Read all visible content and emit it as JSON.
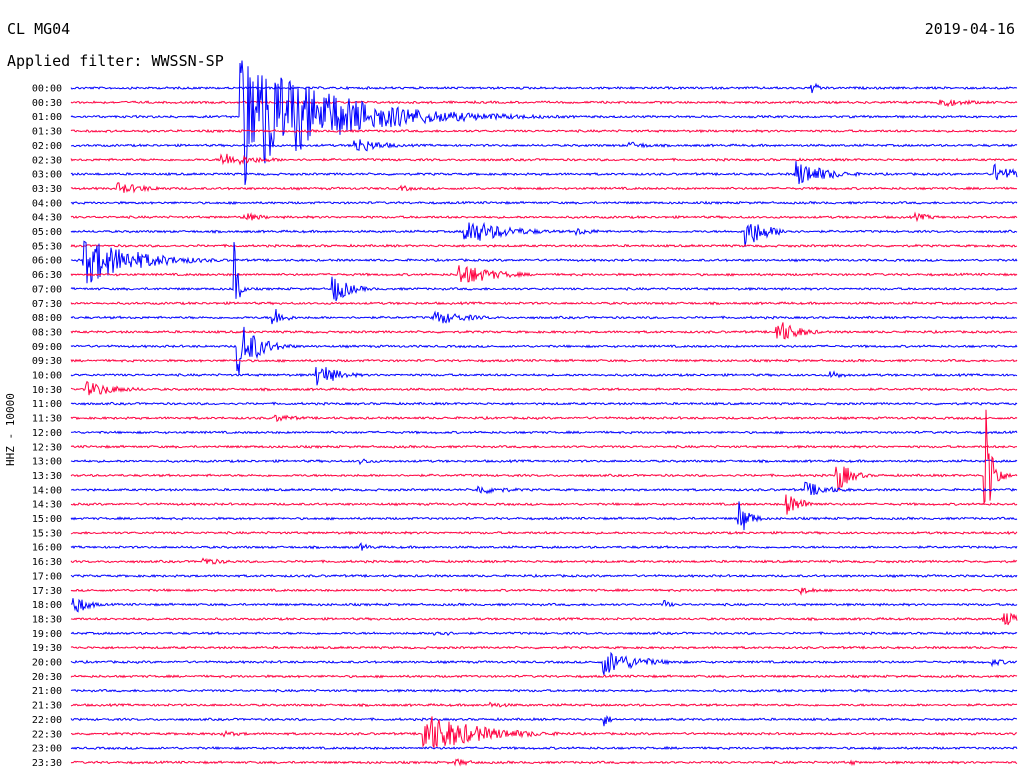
{
  "header": {
    "station": "CL MG04",
    "filter": "Applied filter: WWSSN-SP",
    "date": "2019-04-16"
  },
  "colors": {
    "odd": "#0000ff",
    "even": "#ff0040",
    "text": "#000000"
  },
  "chart_data": {
    "type": "line",
    "title": "CL MG04",
    "subtitle": "Applied filter: WWSSN-SP",
    "ylabel": "HHZ - 10000",
    "grid": false,
    "legend": "none",
    "rows": [
      "00:00",
      "00:30",
      "01:00",
      "01:30",
      "02:00",
      "02:30",
      "03:00",
      "03:30",
      "04:00",
      "04:30",
      "05:00",
      "05:30",
      "06:00",
      "06:30",
      "07:00",
      "07:30",
      "08:00",
      "08:30",
      "09:00",
      "09:30",
      "10:00",
      "10:30",
      "11:00",
      "11:30",
      "12:00",
      "12:30",
      "13:00",
      "13:30",
      "14:00",
      "14:30",
      "15:00",
      "15:30",
      "16:00",
      "16:30",
      "17:00",
      "17:30",
      "18:00",
      "18:30",
      "19:00",
      "19:30",
      "20:00",
      "20:30",
      "21:00",
      "21:30",
      "22:00",
      "22:30",
      "23:00",
      "23:30"
    ],
    "row_minutes": 30,
    "events": [
      {
        "row": 0,
        "minute": 23.5,
        "amp": 6,
        "dur": 0.3
      },
      {
        "row": 1,
        "minute": 27.5,
        "amp": 5,
        "dur": 1.0
      },
      {
        "row": 2,
        "minute": 5.4,
        "amp": 72,
        "dur": 2.5
      },
      {
        "row": 2,
        "minute": 6.8,
        "amp": 12,
        "dur": 1.2
      },
      {
        "row": 4,
        "minute": 9.0,
        "amp": 9,
        "dur": 0.8
      },
      {
        "row": 4,
        "minute": 17.7,
        "amp": 4,
        "dur": 0.7
      },
      {
        "row": 5,
        "minute": 4.8,
        "amp": 8,
        "dur": 1.0
      },
      {
        "row": 6,
        "minute": 23.0,
        "amp": 14,
        "dur": 0.9
      },
      {
        "row": 6,
        "minute": 29.3,
        "amp": 10,
        "dur": 0.7
      },
      {
        "row": 7,
        "minute": 1.5,
        "amp": 6,
        "dur": 1.0
      },
      {
        "row": 7,
        "minute": 10.5,
        "amp": 3,
        "dur": 0.6
      },
      {
        "row": 9,
        "minute": 5.5,
        "amp": 5,
        "dur": 0.6
      },
      {
        "row": 9,
        "minute": 26.8,
        "amp": 4,
        "dur": 0.6
      },
      {
        "row": 10,
        "minute": 12.5,
        "amp": 14,
        "dur": 1.2
      },
      {
        "row": 10,
        "minute": 16.0,
        "amp": 4,
        "dur": 0.8
      },
      {
        "row": 10,
        "minute": 21.4,
        "amp": 18,
        "dur": 0.6
      },
      {
        "row": 12,
        "minute": 0.4,
        "amp": 26,
        "dur": 1.5
      },
      {
        "row": 13,
        "minute": 12.3,
        "amp": 13,
        "dur": 1.0
      },
      {
        "row": 14,
        "minute": 8.3,
        "amp": 16,
        "dur": 0.5
      },
      {
        "row": 14,
        "minute": 5.2,
        "amp": 70,
        "dur": 0.1
      },
      {
        "row": 16,
        "minute": 6.4,
        "amp": 14,
        "dur": 0.3
      },
      {
        "row": 16,
        "minute": 11.5,
        "amp": 8,
        "dur": 1.0
      },
      {
        "row": 17,
        "minute": 22.4,
        "amp": 14,
        "dur": 0.6
      },
      {
        "row": 18,
        "minute": 5.3,
        "amp": 30,
        "dur": 0.6
      },
      {
        "row": 20,
        "minute": 7.8,
        "amp": 14,
        "dur": 0.6
      },
      {
        "row": 20,
        "minute": 24.1,
        "amp": 5,
        "dur": 0.4
      },
      {
        "row": 21,
        "minute": 0.5,
        "amp": 8,
        "dur": 1.0
      },
      {
        "row": 23,
        "minute": 6.5,
        "amp": 4,
        "dur": 0.8
      },
      {
        "row": 26,
        "minute": 9.2,
        "amp": 3,
        "dur": 0.6
      },
      {
        "row": 27,
        "minute": 24.3,
        "amp": 18,
        "dur": 0.4
      },
      {
        "row": 27,
        "minute": 29.0,
        "amp": 80,
        "dur": 0.2
      },
      {
        "row": 28,
        "minute": 12.9,
        "amp": 5,
        "dur": 1.0
      },
      {
        "row": 28,
        "minute": 23.3,
        "amp": 8,
        "dur": 0.8
      },
      {
        "row": 29,
        "minute": 22.7,
        "amp": 12,
        "dur": 0.5
      },
      {
        "row": 30,
        "minute": 21.2,
        "amp": 20,
        "dur": 0.3
      },
      {
        "row": 32,
        "minute": 9.2,
        "amp": 4,
        "dur": 0.4
      },
      {
        "row": 33,
        "minute": 4.2,
        "amp": 4,
        "dur": 0.8
      },
      {
        "row": 35,
        "minute": 23.2,
        "amp": 4,
        "dur": 0.5
      },
      {
        "row": 36,
        "minute": 0.1,
        "amp": 12,
        "dur": 0.4
      },
      {
        "row": 36,
        "minute": 18.8,
        "amp": 6,
        "dur": 0.2
      },
      {
        "row": 37,
        "minute": 29.6,
        "amp": 8,
        "dur": 0.6
      },
      {
        "row": 38,
        "minute": 11.5,
        "amp": 4,
        "dur": 0.6
      },
      {
        "row": 40,
        "minute": 16.9,
        "amp": 14,
        "dur": 1.0
      },
      {
        "row": 40,
        "minute": 29.2,
        "amp": 4,
        "dur": 0.6
      },
      {
        "row": 43,
        "minute": 13.3,
        "amp": 3,
        "dur": 0.8
      },
      {
        "row": 44,
        "minute": 16.9,
        "amp": 8,
        "dur": 0.2
      },
      {
        "row": 45,
        "minute": 11.2,
        "amp": 22,
        "dur": 1.6
      },
      {
        "row": 45,
        "minute": 4.8,
        "amp": 3,
        "dur": 0.8
      },
      {
        "row": 47,
        "minute": 12.2,
        "amp": 4,
        "dur": 0.6
      },
      {
        "row": 47,
        "minute": 24.7,
        "amp": 4,
        "dur": 0.2
      }
    ]
  }
}
